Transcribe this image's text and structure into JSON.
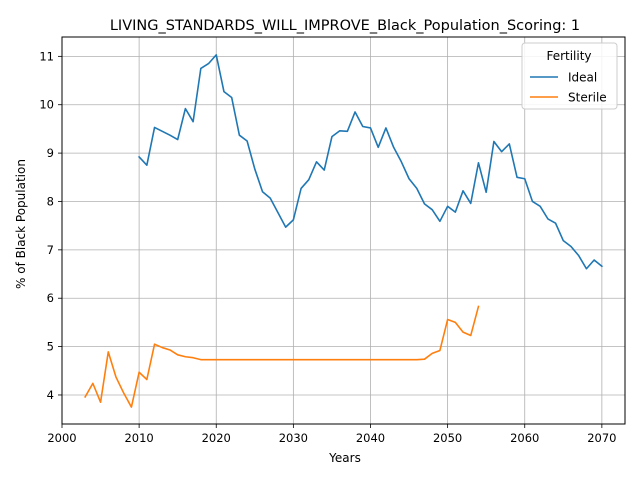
{
  "chart_data": {
    "type": "line",
    "title": "LIVING_STANDARDS_WILL_IMPROVE_Black_Population_Scoring: 1",
    "xlabel": "Years",
    "ylabel": "% of Black Population",
    "xlim": [
      2000,
      2073
    ],
    "ylim": [
      3.4,
      11.4
    ],
    "xticks": [
      2000,
      2010,
      2020,
      2030,
      2040,
      2050,
      2060,
      2070
    ],
    "yticks": [
      4,
      5,
      6,
      7,
      8,
      9,
      10,
      11
    ],
    "grid": true,
    "legend": {
      "title": "Fertility",
      "placement": "top-right"
    },
    "series": [
      {
        "name": "Ideal",
        "color": "#1f77b4",
        "x": [
          2010,
          2011,
          2012,
          2013,
          2014,
          2015,
          2016,
          2017,
          2018,
          2019,
          2020,
          2021,
          2022,
          2023,
          2024,
          2025,
          2026,
          2027,
          2028,
          2029,
          2030,
          2031,
          2032,
          2033,
          2034,
          2035,
          2036,
          2037,
          2038,
          2039,
          2040,
          2041,
          2042,
          2043,
          2044,
          2045,
          2046,
          2047,
          2048,
          2049,
          2050,
          2051,
          2052,
          2053,
          2054,
          2055,
          2056,
          2057,
          2058,
          2059,
          2060,
          2061,
          2062,
          2063,
          2064,
          2065,
          2066,
          2067,
          2068,
          2069,
          2070
        ],
        "y": [
          8.92,
          8.75,
          9.53,
          9.45,
          9.37,
          9.28,
          9.92,
          9.65,
          10.75,
          10.85,
          11.03,
          10.27,
          10.15,
          9.37,
          9.25,
          8.67,
          8.2,
          8.07,
          7.77,
          7.47,
          7.62,
          8.27,
          8.45,
          8.82,
          8.65,
          9.34,
          9.46,
          9.45,
          9.85,
          9.55,
          9.52,
          9.12,
          9.52,
          9.12,
          8.82,
          8.47,
          8.27,
          7.95,
          7.83,
          7.59,
          7.9,
          7.78,
          8.22,
          7.96,
          8.8,
          8.19,
          9.24,
          9.03,
          9.19,
          8.5,
          8.47,
          8.0,
          7.9,
          7.64,
          7.55,
          7.19,
          7.07,
          6.88,
          6.61,
          6.79,
          6.66
        ]
      },
      {
        "name": "Sterile",
        "color": "#ff7f0e",
        "x": [
          2003,
          2004,
          2005,
          2006,
          2007,
          2008,
          2009,
          2010,
          2011,
          2012,
          2013,
          2014,
          2015,
          2016,
          2017,
          2018,
          2019,
          2020,
          2021,
          2022,
          2023,
          2024,
          2025,
          2026,
          2027,
          2028,
          2029,
          2030,
          2031,
          2032,
          2033,
          2034,
          2035,
          2036,
          2037,
          2038,
          2039,
          2040,
          2041,
          2042,
          2043,
          2044,
          2045,
          2046,
          2047,
          2048,
          2049,
          2050,
          2051,
          2052,
          2053,
          2054
        ],
        "y": [
          3.96,
          4.24,
          3.85,
          4.89,
          4.37,
          4.04,
          3.75,
          4.47,
          4.32,
          5.05,
          4.98,
          4.93,
          4.83,
          4.79,
          4.77,
          4.73,
          4.73,
          4.73,
          4.73,
          4.73,
          4.73,
          4.73,
          4.73,
          4.73,
          4.73,
          4.73,
          4.73,
          4.73,
          4.73,
          4.73,
          4.73,
          4.73,
          4.73,
          4.73,
          4.73,
          4.73,
          4.73,
          4.73,
          4.73,
          4.73,
          4.73,
          4.73,
          4.73,
          4.73,
          4.74,
          4.86,
          4.92,
          5.56,
          5.5,
          5.3,
          5.23,
          5.83
        ]
      }
    ]
  }
}
